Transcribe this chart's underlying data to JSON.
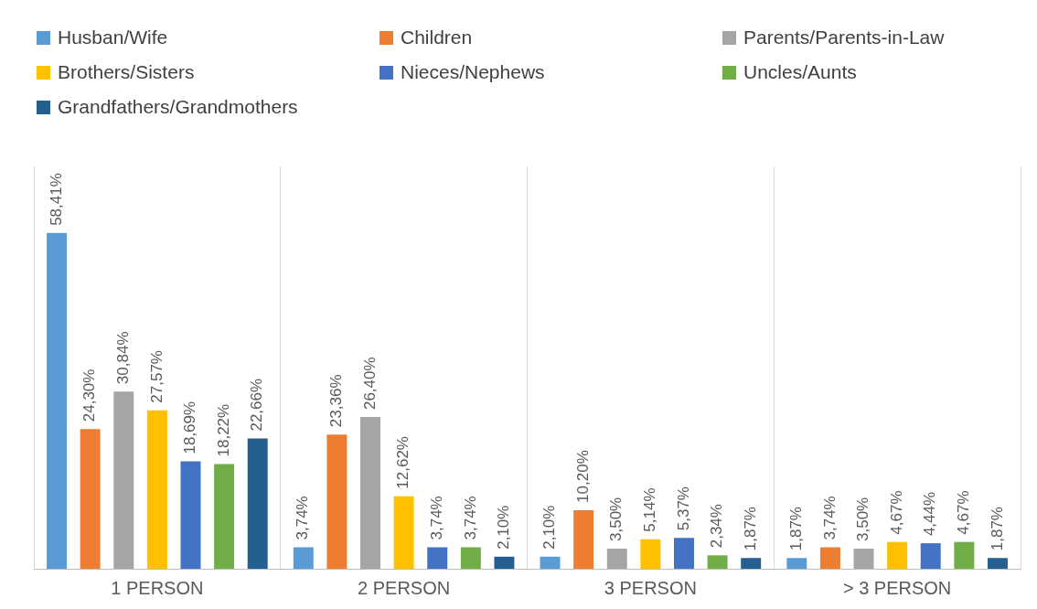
{
  "chart_data": {
    "type": "bar",
    "categories": [
      "1 PERSON",
      "2 PERSON",
      "3 PERSON",
      "> 3 PERSON"
    ],
    "ylim": [
      0,
      70
    ],
    "grid": "x",
    "legend": "top",
    "tick_labels": "x",
    "series": [
      {
        "name": "Husban/Wife",
        "color": "#5b9bd5",
        "values": [
          58.41,
          3.74,
          2.1,
          1.87
        ],
        "value_labels": [
          "58,41%",
          "3,74%",
          "2,10%",
          "1,87%"
        ]
      },
      {
        "name": "Children",
        "color": "#ed7d31",
        "values": [
          24.3,
          23.36,
          10.2,
          3.74
        ],
        "value_labels": [
          "24,30%",
          "23,36%",
          "10,20%",
          "3,74%"
        ]
      },
      {
        "name": "Parents/Parents-in-Law",
        "color": "#a5a5a5",
        "values": [
          30.84,
          26.4,
          3.5,
          3.5
        ],
        "value_labels": [
          "30,84%",
          "26,40%",
          "3,50%",
          "3,50%"
        ]
      },
      {
        "name": "Brothers/Sisters",
        "color": "#ffc000",
        "values": [
          27.57,
          12.62,
          5.14,
          4.67
        ],
        "value_labels": [
          "27,57%",
          "12,62%",
          "5,14%",
          "4,67%"
        ]
      },
      {
        "name": "Nieces/Nephews",
        "color": "#4472c4",
        "values": [
          18.69,
          3.74,
          5.37,
          4.44
        ],
        "value_labels": [
          "18,69%",
          "3,74%",
          "5,37%",
          "4,44%"
        ]
      },
      {
        "name": "Uncles/Aunts",
        "color": "#70ad47",
        "values": [
          18.22,
          3.74,
          2.34,
          4.67
        ],
        "value_labels": [
          "18,22%",
          "3,74%",
          "2,34%",
          "4,67%"
        ]
      },
      {
        "name": "Grandfathers/Grandmothers",
        "color": "#255e91",
        "values": [
          22.66,
          2.1,
          1.87,
          1.87
        ],
        "value_labels": [
          "22,66%",
          "2,10%",
          "1,87%",
          "1,87%"
        ]
      }
    ]
  }
}
